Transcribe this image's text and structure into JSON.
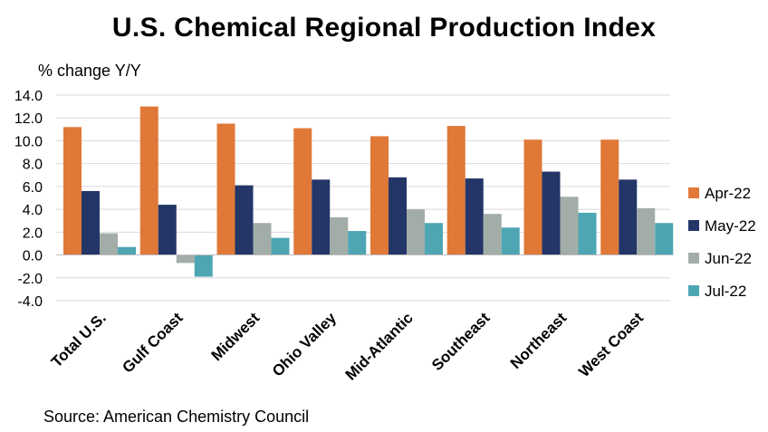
{
  "chart_data": {
    "type": "bar",
    "title": "U.S. Chemical Regional Production Index",
    "ylabel": "% change Y/Y",
    "xlabel": "",
    "source": "Source: American Chemistry Council",
    "ylim": [
      -4.0,
      14.0
    ],
    "yticks": [
      "14.0",
      "12.0",
      "10.0",
      "8.0",
      "6.0",
      "4.0",
      "2.0",
      "0.0",
      "-2.0",
      "-4.0"
    ],
    "grid": true,
    "legend_position": "right",
    "categories": [
      "Total U.S.",
      "Gulf Coast",
      "Midwest",
      "Ohio Valley",
      "Mid-Atlantic",
      "Southeast",
      "Northeast",
      "West Coast"
    ],
    "series": [
      {
        "name": "Apr-22",
        "color": "#E07838",
        "values": [
          11.2,
          13.0,
          11.5,
          11.1,
          10.4,
          11.3,
          10.1,
          10.1
        ]
      },
      {
        "name": "May-22",
        "color": "#243668",
        "values": [
          5.6,
          4.4,
          6.1,
          6.6,
          6.8,
          6.7,
          7.3,
          6.6
        ]
      },
      {
        "name": "Jun-22",
        "color": "#A3ADA8",
        "values": [
          1.9,
          -0.7,
          2.8,
          3.3,
          4.0,
          3.6,
          5.1,
          4.1
        ]
      },
      {
        "name": "Jul-22",
        "color": "#4EA6B4",
        "values": [
          0.7,
          -1.9,
          1.5,
          2.1,
          2.8,
          2.4,
          3.7,
          2.8
        ]
      }
    ]
  }
}
